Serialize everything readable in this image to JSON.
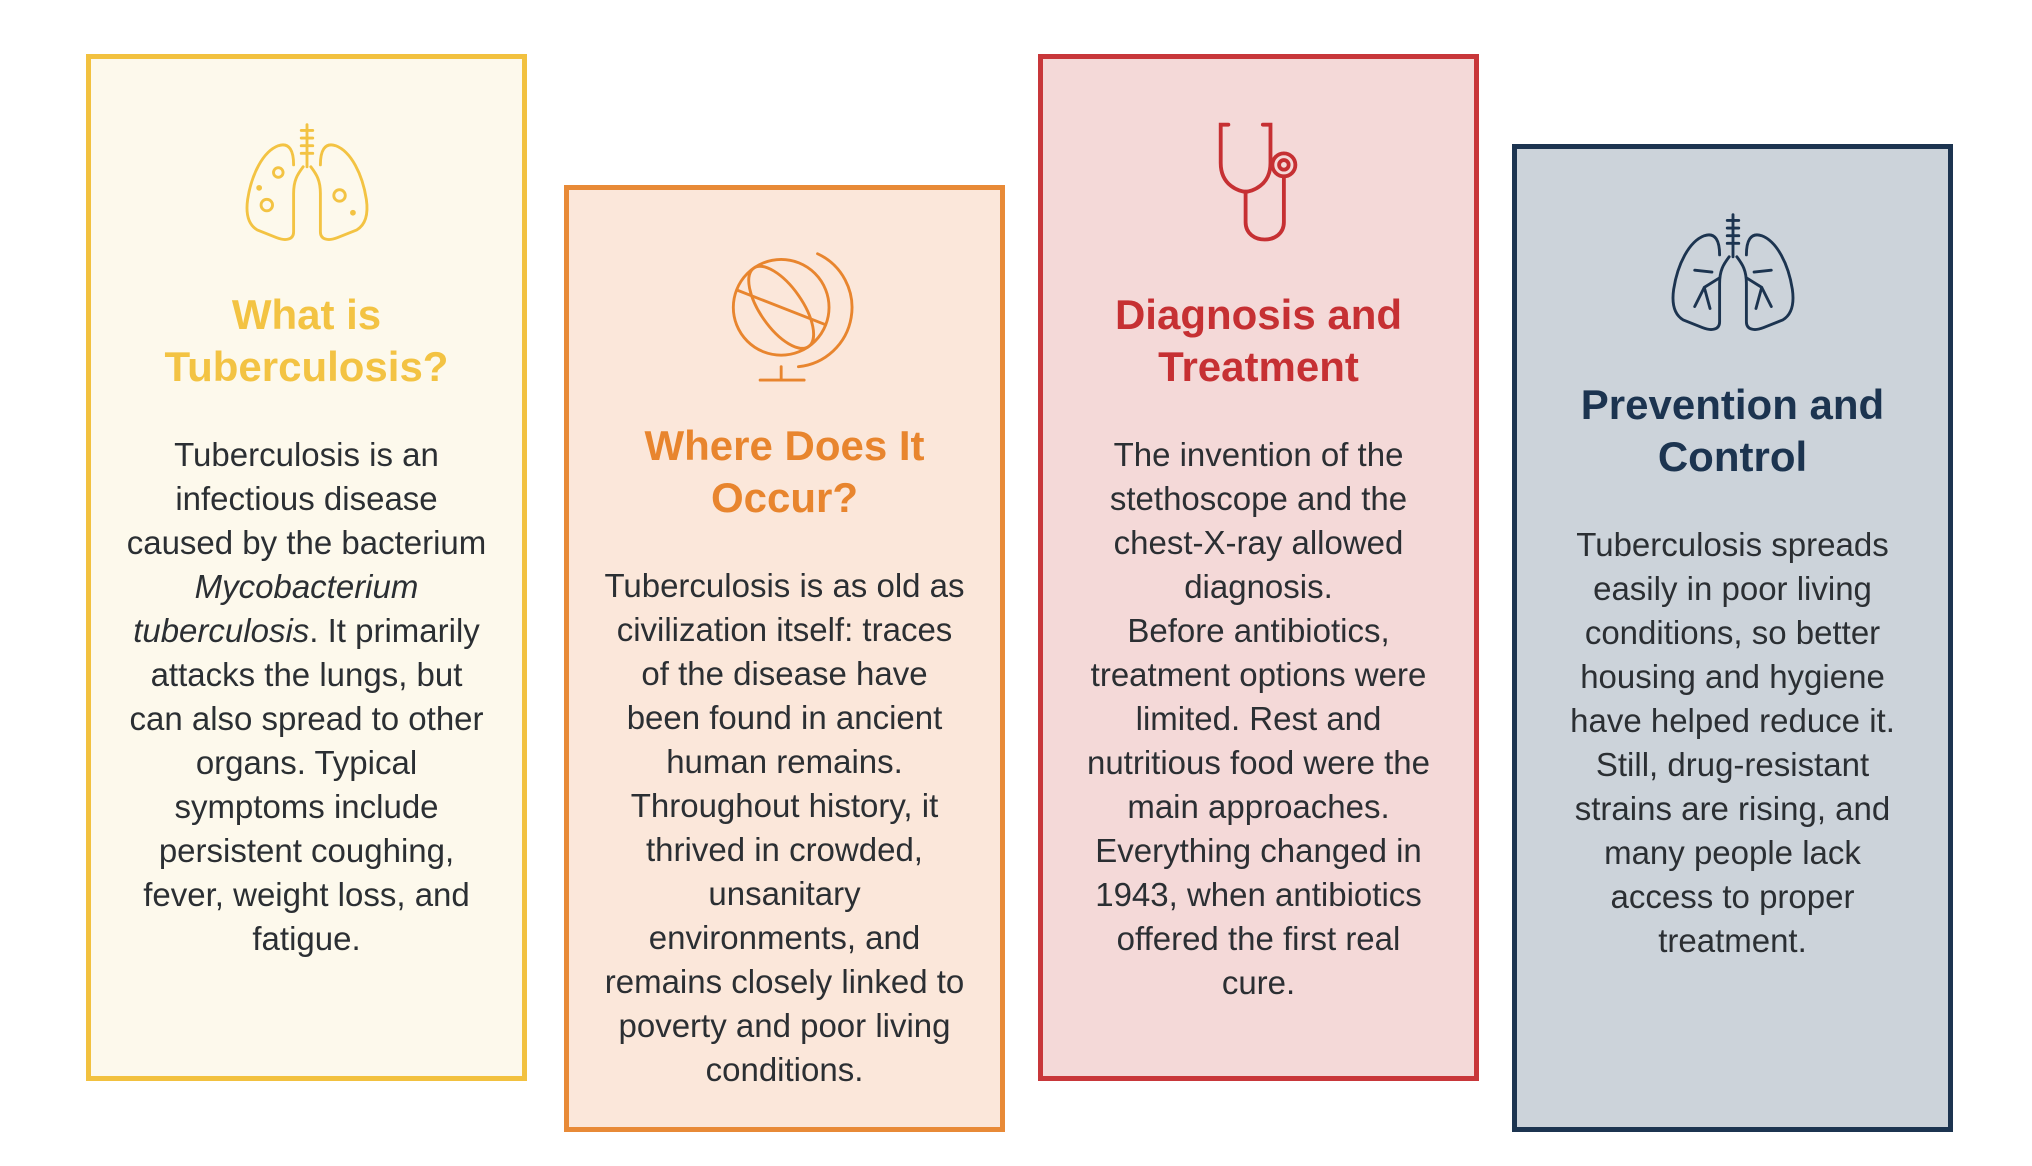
{
  "cards": [
    {
      "title": "What is Tuberculosis?",
      "color": "#f3c343",
      "border": "#f2c13f",
      "background": "#fdf9ec",
      "paragraphs": [
        [
          {
            "text": "Tuberculosis is an infectious disease caused by the bacterium "
          },
          {
            "text": "Mycobacterium tuberculosis",
            "italic": true
          },
          {
            "text": ". It primarily attacks the lungs, but can also spread to other organs. Typical symptoms include persistent coughing, fever, weight loss, and fatigue."
          }
        ]
      ]
    },
    {
      "title": "Where Does It Occur?",
      "color": "#e8852e",
      "border": "#e88a37",
      "background": "#fbe7da",
      "paragraphs": [
        [
          {
            "text": "Tuberculosis is as old as civilization itself: traces of the disease have been found in ancient human remains. Throughout history, it thrived in crowded, unsanitary environments, and remains closely linked to poverty and poor living conditions."
          }
        ]
      ]
    },
    {
      "title": "Diagnosis and Treatment",
      "color": "#c63033",
      "border": "#c8373a",
      "background": "#f4d9d8",
      "paragraphs": [
        [
          {
            "text": "The invention of the stethoscope and the chest-X-ray allowed diagnosis."
          }
        ],
        [
          {
            "text": "Before antibiotics, treatment options were limited. Rest and nutritious food were the main approaches."
          }
        ],
        [
          {
            "text": "Everything changed in 1943, when antibiotics offered the first real cure."
          }
        ]
      ]
    },
    {
      "title": "Prevention and Control",
      "color": "#1c3450",
      "border": "#1c3450",
      "background": "#ccd3da",
      "paragraphs": [
        [
          {
            "text": "Tuberculosis spreads easily in poor living conditions, so better housing and hygiene have helped reduce it. Still, drug-resistant strains are rising, and many people lack access to proper treatment."
          }
        ]
      ]
    }
  ]
}
